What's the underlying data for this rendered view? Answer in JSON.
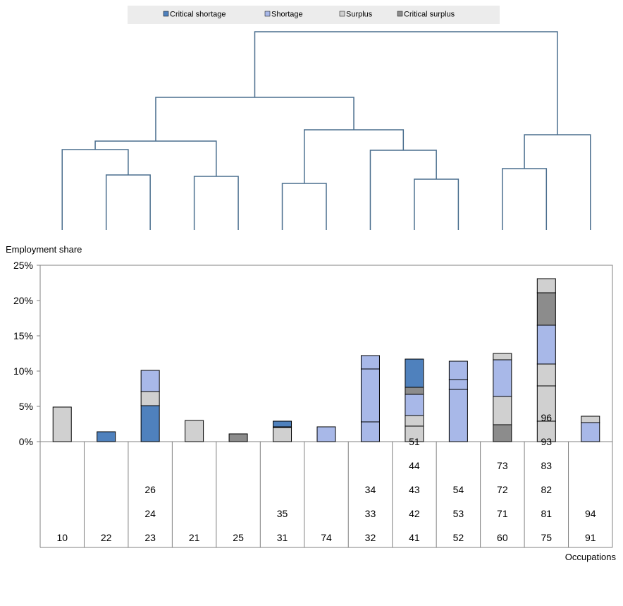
{
  "colors": {
    "critical_shortage": "#4f81bd",
    "shortage": "#a8b8e8",
    "surplus": "#d0d0d0",
    "critical_surplus": "#8c8c8c",
    "dendrogram": "#4a6e8e",
    "legend_bg": "#ececec"
  },
  "chart_data": {
    "type": "bar",
    "stacked": true,
    "ylabel": "Employment share",
    "xlabel": "Occupations",
    "ylim": [
      0,
      25
    ],
    "yticks": [
      0,
      5,
      10,
      15,
      20,
      25
    ],
    "ytick_labels": [
      "0%",
      "5%",
      "10%",
      "15%",
      "20%",
      "25%"
    ],
    "legend": {
      "position": "top",
      "entries": [
        {
          "label": "Critical shortage",
          "key": "critical_shortage"
        },
        {
          "label": "Shortage",
          "key": "shortage"
        },
        {
          "label": "Surplus",
          "key": "surplus"
        },
        {
          "label": "Critical surplus",
          "key": "critical_surplus"
        }
      ]
    },
    "groups": [
      {
        "codes": [
          "10"
        ],
        "segments": [
          {
            "cat": "surplus",
            "value": 4.9
          }
        ]
      },
      {
        "codes": [
          "22"
        ],
        "segments": [
          {
            "cat": "critical_shortage",
            "value": 1.4
          }
        ]
      },
      {
        "codes": [
          "23",
          "24",
          "26"
        ],
        "segments": [
          {
            "cat": "critical_shortage",
            "value": 5.1
          },
          {
            "cat": "surplus",
            "value": 2.0
          },
          {
            "cat": "shortage",
            "value": 3.0
          }
        ]
      },
      {
        "codes": [
          "21"
        ],
        "segments": [
          {
            "cat": "surplus",
            "value": 3.0
          }
        ]
      },
      {
        "codes": [
          "25"
        ],
        "segments": [
          {
            "cat": "critical_surplus",
            "value": 1.1
          }
        ]
      },
      {
        "codes": [
          "31",
          "35"
        ],
        "segments": [
          {
            "cat": "surplus",
            "value": 2.0
          },
          {
            "cat": "shortage",
            "value": 0.1
          },
          {
            "cat": "critical_shortage",
            "value": 0.8
          }
        ]
      },
      {
        "codes": [
          "74"
        ],
        "segments": [
          {
            "cat": "shortage",
            "value": 2.1
          }
        ]
      },
      {
        "codes": [
          "32",
          "33",
          "34"
        ],
        "segments": [
          {
            "cat": "shortage",
            "value": 2.8
          },
          {
            "cat": "shortage",
            "value": 7.5
          },
          {
            "cat": "shortage",
            "value": 1.9
          }
        ]
      },
      {
        "codes": [
          "41",
          "42",
          "43",
          "44",
          "51"
        ],
        "segments": [
          {
            "cat": "surplus",
            "value": 2.2
          },
          {
            "cat": "surplus",
            "value": 1.5
          },
          {
            "cat": "shortage",
            "value": 3.0
          },
          {
            "cat": "critical_surplus",
            "value": 1.0
          },
          {
            "cat": "critical_shortage",
            "value": 4.0
          }
        ]
      },
      {
        "codes": [
          "52",
          "53",
          "54"
        ],
        "segments": [
          {
            "cat": "shortage",
            "value": 7.4
          },
          {
            "cat": "shortage",
            "value": 1.4
          },
          {
            "cat": "shortage",
            "value": 2.6
          }
        ]
      },
      {
        "codes": [
          "60",
          "71",
          "72",
          "73"
        ],
        "segments": [
          {
            "cat": "critical_surplus",
            "value": 2.4
          },
          {
            "cat": "surplus",
            "value": 4.0
          },
          {
            "cat": "shortage",
            "value": 5.2
          },
          {
            "cat": "surplus",
            "value": 0.9
          }
        ]
      },
      {
        "codes": [
          "75",
          "81",
          "82",
          "83",
          "93",
          "96"
        ],
        "segments": [
          {
            "cat": "surplus",
            "value": 2.9
          },
          {
            "cat": "surplus",
            "value": 5.0
          },
          {
            "cat": "surplus",
            "value": 3.1
          },
          {
            "cat": "shortage",
            "value": 5.5
          },
          {
            "cat": "critical_surplus",
            "value": 4.6
          },
          {
            "cat": "surplus",
            "value": 2.0
          }
        ]
      },
      {
        "codes": [
          "91",
          "94"
        ],
        "segments": [
          {
            "cat": "shortage",
            "value": 2.7
          },
          {
            "cat": "surplus",
            "value": 0.9
          }
        ]
      }
    ]
  }
}
